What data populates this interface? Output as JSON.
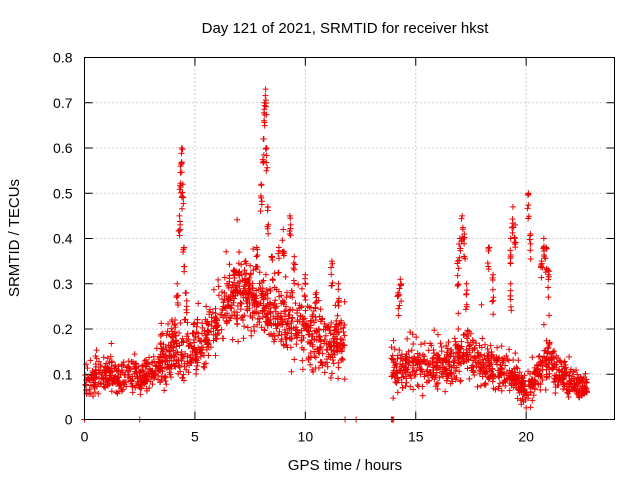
{
  "chart_data": {
    "type": "scatter",
    "title": "Day 121 of 2021, SRMTID for receiver hkst",
    "xlabel": "GPS time / hours",
    "ylabel": "SRMTID / TECUs",
    "xlim": [
      0,
      24
    ],
    "ylim": [
      0,
      0.8
    ],
    "xticks": [
      0,
      5,
      10,
      15,
      20
    ],
    "xtick_labels": [
      "0",
      "5",
      "10",
      "15",
      "20"
    ],
    "yticks": [
      0,
      0.1,
      0.2,
      0.3,
      0.4,
      0.5,
      0.6,
      0.7,
      0.8
    ],
    "ytick_labels": [
      "0",
      "0.1",
      "0.2",
      "0.3",
      "0.4",
      "0.5",
      "0.6",
      "0.7",
      "0.8"
    ],
    "grid": true,
    "marker": "+",
    "color": "#ee0000",
    "profile": [
      [
        0.0,
        0.09,
        0.03
      ],
      [
        0.5,
        0.09,
        0.03
      ],
      [
        1.0,
        0.1,
        0.03
      ],
      [
        1.5,
        0.09,
        0.03
      ],
      [
        2.0,
        0.1,
        0.03
      ],
      [
        2.5,
        0.09,
        0.03
      ],
      [
        3.0,
        0.1,
        0.03
      ],
      [
        3.5,
        0.13,
        0.04
      ],
      [
        4.0,
        0.15,
        0.05
      ],
      [
        4.5,
        0.15,
        0.05
      ],
      [
        5.0,
        0.15,
        0.05
      ],
      [
        5.5,
        0.18,
        0.05
      ],
      [
        6.0,
        0.22,
        0.05
      ],
      [
        6.5,
        0.25,
        0.05
      ],
      [
        7.0,
        0.27,
        0.06
      ],
      [
        7.5,
        0.27,
        0.06
      ],
      [
        8.0,
        0.25,
        0.06
      ],
      [
        8.5,
        0.24,
        0.06
      ],
      [
        9.0,
        0.22,
        0.06
      ],
      [
        9.5,
        0.22,
        0.06
      ],
      [
        10.0,
        0.2,
        0.06
      ],
      [
        10.5,
        0.18,
        0.05
      ],
      [
        11.0,
        0.16,
        0.05
      ],
      [
        11.5,
        0.17,
        0.05
      ],
      [
        14.0,
        0.12,
        0.04
      ],
      [
        14.5,
        0.11,
        0.04
      ],
      [
        15.0,
        0.12,
        0.04
      ],
      [
        15.5,
        0.12,
        0.04
      ],
      [
        16.0,
        0.12,
        0.04
      ],
      [
        16.5,
        0.12,
        0.04
      ],
      [
        17.0,
        0.15,
        0.05
      ],
      [
        17.5,
        0.15,
        0.05
      ],
      [
        18.0,
        0.13,
        0.05
      ],
      [
        18.5,
        0.11,
        0.04
      ],
      [
        19.0,
        0.11,
        0.04
      ],
      [
        19.5,
        0.09,
        0.03
      ],
      [
        20.0,
        0.06,
        0.03
      ],
      [
        20.5,
        0.1,
        0.04
      ],
      [
        21.0,
        0.13,
        0.05
      ],
      [
        21.5,
        0.1,
        0.03
      ],
      [
        22.0,
        0.08,
        0.03
      ],
      [
        22.5,
        0.07,
        0.02
      ],
      [
        22.8,
        0.07,
        0.02
      ]
    ],
    "gaps": [
      [
        11.8,
        13.9
      ]
    ],
    "spikes": [
      [
        4.1,
        0.22
      ],
      [
        4.2,
        0.3
      ],
      [
        4.3,
        0.45
      ],
      [
        4.35,
        0.56
      ],
      [
        4.4,
        0.6
      ],
      [
        4.45,
        0.52
      ],
      [
        4.5,
        0.38
      ],
      [
        4.6,
        0.28
      ],
      [
        6.8,
        0.33
      ],
      [
        7.0,
        0.37
      ],
      [
        7.3,
        0.35
      ],
      [
        7.5,
        0.34
      ],
      [
        7.8,
        0.38
      ],
      [
        8.0,
        0.52
      ],
      [
        8.1,
        0.62
      ],
      [
        8.15,
        0.7
      ],
      [
        8.2,
        0.73
      ],
      [
        8.25,
        0.6
      ],
      [
        8.3,
        0.47
      ],
      [
        8.5,
        0.36
      ],
      [
        8.8,
        0.38
      ],
      [
        9.0,
        0.42
      ],
      [
        9.3,
        0.45
      ],
      [
        9.5,
        0.36
      ],
      [
        10.0,
        0.32
      ],
      [
        10.5,
        0.28
      ],
      [
        11.2,
        0.35
      ],
      [
        11.5,
        0.3
      ],
      [
        14.3,
        0.31
      ],
      [
        14.2,
        0.28
      ],
      [
        16.9,
        0.35
      ],
      [
        17.0,
        0.4
      ],
      [
        17.1,
        0.45
      ],
      [
        17.2,
        0.41
      ],
      [
        17.3,
        0.3
      ],
      [
        18.3,
        0.38
      ],
      [
        18.5,
        0.32
      ],
      [
        19.3,
        0.4
      ],
      [
        19.4,
        0.47
      ],
      [
        19.5,
        0.43
      ],
      [
        19.3,
        0.3
      ],
      [
        20.1,
        0.5
      ],
      [
        20.2,
        0.41
      ],
      [
        20.7,
        0.35
      ],
      [
        20.8,
        0.4
      ],
      [
        20.9,
        0.38
      ],
      [
        21.0,
        0.33
      ]
    ],
    "zero_points": [
      0.0,
      2.5,
      11.8,
      12.3,
      13.9,
      13.95,
      14.0
    ],
    "n_points": 2200
  }
}
